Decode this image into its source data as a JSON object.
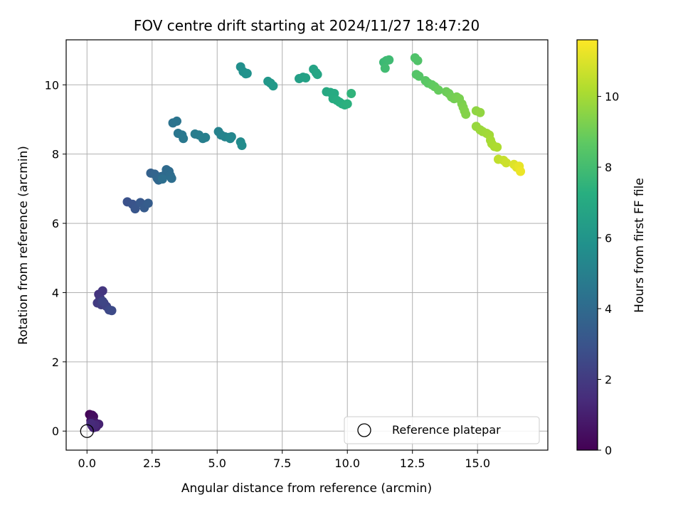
{
  "chart_data": {
    "type": "scatter",
    "title": "FOV centre drift starting at 2024/11/27 18:47:20",
    "xlabel": "Angular distance from reference (arcmin)",
    "ylabel": "Rotation from reference (arcmin)",
    "xlim": [
      -0.8,
      17.7
    ],
    "ylim": [
      -0.55,
      11.3
    ],
    "xticks": [
      0.0,
      2.5,
      5.0,
      7.5,
      10.0,
      12.5,
      15.0
    ],
    "xtick_labels": [
      "0.0",
      "2.5",
      "5.0",
      "7.5",
      "10.0",
      "12.5",
      "15.0"
    ],
    "yticks": [
      0,
      2,
      4,
      6,
      8,
      10
    ],
    "ytick_labels": [
      "0",
      "2",
      "4",
      "6",
      "8",
      "10"
    ],
    "grid": true,
    "legend": {
      "placement": "lower-right",
      "entries": [
        "Reference platepar"
      ]
    },
    "colorbar": {
      "label": "Hours from first FF file",
      "colormap": "viridis",
      "range": [
        0,
        11.6
      ],
      "ticks": [
        0,
        2,
        4,
        6,
        8,
        10
      ],
      "tick_labels": [
        "0",
        "2",
        "4",
        "6",
        "8",
        "10"
      ]
    },
    "reference_point": {
      "name": "Reference platepar",
      "x": 0.0,
      "y": 0.0
    },
    "points": [
      {
        "x": 0.1,
        "y": 0.48,
        "c": 0.1
      },
      {
        "x": 0.2,
        "y": 0.46,
        "c": 0.3
      },
      {
        "x": 0.25,
        "y": 0.42,
        "c": 0.4
      },
      {
        "x": 0.15,
        "y": 0.3,
        "c": 0.5
      },
      {
        "x": 0.3,
        "y": 0.25,
        "c": 0.7
      },
      {
        "x": 0.4,
        "y": 0.2,
        "c": 0.8
      },
      {
        "x": 0.2,
        "y": 0.15,
        "c": 0.9
      },
      {
        "x": 0.35,
        "y": 0.12,
        "c": 1.0
      },
      {
        "x": 0.45,
        "y": 0.2,
        "c": 1.1
      },
      {
        "x": 0.25,
        "y": 0.1,
        "c": 1.2
      },
      {
        "x": 0.3,
        "y": 0.18,
        "c": 1.3
      },
      {
        "x": 0.15,
        "y": 0.22,
        "c": 1.4
      },
      {
        "x": 0.45,
        "y": 3.95,
        "c": 1.7
      },
      {
        "x": 0.6,
        "y": 4.05,
        "c": 1.8
      },
      {
        "x": 0.5,
        "y": 3.85,
        "c": 1.9
      },
      {
        "x": 0.4,
        "y": 3.7,
        "c": 2.0
      },
      {
        "x": 0.55,
        "y": 3.65,
        "c": 2.1
      },
      {
        "x": 0.65,
        "y": 3.7,
        "c": 2.2
      },
      {
        "x": 0.75,
        "y": 3.6,
        "c": 2.3
      },
      {
        "x": 0.6,
        "y": 3.75,
        "c": 2.4
      },
      {
        "x": 0.85,
        "y": 3.5,
        "c": 2.5
      },
      {
        "x": 0.95,
        "y": 3.48,
        "c": 2.6
      },
      {
        "x": 1.55,
        "y": 6.62,
        "c": 2.9
      },
      {
        "x": 1.75,
        "y": 6.55,
        "c": 3.0
      },
      {
        "x": 1.85,
        "y": 6.42,
        "c": 3.1
      },
      {
        "x": 2.05,
        "y": 6.6,
        "c": 3.2
      },
      {
        "x": 2.2,
        "y": 6.45,
        "c": 3.3
      },
      {
        "x": 2.35,
        "y": 6.58,
        "c": 3.4
      },
      {
        "x": 2.45,
        "y": 7.45,
        "c": 3.6
      },
      {
        "x": 2.6,
        "y": 7.42,
        "c": 3.7
      },
      {
        "x": 2.7,
        "y": 7.3,
        "c": 3.8
      },
      {
        "x": 2.75,
        "y": 7.25,
        "c": 3.85
      },
      {
        "x": 2.85,
        "y": 7.35,
        "c": 3.9
      },
      {
        "x": 3.0,
        "y": 7.4,
        "c": 3.95
      },
      {
        "x": 3.05,
        "y": 7.55,
        "c": 4.0
      },
      {
        "x": 3.15,
        "y": 7.5,
        "c": 4.05
      },
      {
        "x": 3.2,
        "y": 7.38,
        "c": 4.1
      },
      {
        "x": 3.25,
        "y": 7.3,
        "c": 4.15
      },
      {
        "x": 2.9,
        "y": 7.28,
        "c": 4.2
      },
      {
        "x": 3.3,
        "y": 8.9,
        "c": 4.4
      },
      {
        "x": 3.45,
        "y": 8.95,
        "c": 4.45
      },
      {
        "x": 3.5,
        "y": 8.6,
        "c": 4.55
      },
      {
        "x": 3.65,
        "y": 8.55,
        "c": 4.6
      },
      {
        "x": 3.7,
        "y": 8.45,
        "c": 4.65
      },
      {
        "x": 4.15,
        "y": 8.58,
        "c": 4.8
      },
      {
        "x": 4.3,
        "y": 8.55,
        "c": 4.85
      },
      {
        "x": 4.45,
        "y": 8.45,
        "c": 4.9
      },
      {
        "x": 4.55,
        "y": 8.48,
        "c": 4.95
      },
      {
        "x": 5.05,
        "y": 8.65,
        "c": 5.1
      },
      {
        "x": 5.15,
        "y": 8.55,
        "c": 5.15
      },
      {
        "x": 5.3,
        "y": 8.5,
        "c": 5.2
      },
      {
        "x": 5.45,
        "y": 8.48,
        "c": 5.25
      },
      {
        "x": 5.55,
        "y": 8.5,
        "c": 5.3
      },
      {
        "x": 5.5,
        "y": 8.45,
        "c": 5.35
      },
      {
        "x": 5.9,
        "y": 8.35,
        "c": 5.5
      },
      {
        "x": 5.95,
        "y": 8.25,
        "c": 5.55
      },
      {
        "x": 5.9,
        "y": 10.52,
        "c": 5.7
      },
      {
        "x": 6.0,
        "y": 10.38,
        "c": 5.75
      },
      {
        "x": 6.1,
        "y": 10.32,
        "c": 5.8
      },
      {
        "x": 6.15,
        "y": 10.33,
        "c": 5.85
      },
      {
        "x": 6.95,
        "y": 10.1,
        "c": 6.1
      },
      {
        "x": 7.05,
        "y": 10.05,
        "c": 6.15
      },
      {
        "x": 7.15,
        "y": 9.97,
        "c": 6.2
      },
      {
        "x": 8.15,
        "y": 10.18,
        "c": 6.5
      },
      {
        "x": 8.3,
        "y": 10.22,
        "c": 6.55
      },
      {
        "x": 8.4,
        "y": 10.2,
        "c": 6.6
      },
      {
        "x": 8.7,
        "y": 10.45,
        "c": 6.7
      },
      {
        "x": 8.8,
        "y": 10.35,
        "c": 6.75
      },
      {
        "x": 8.85,
        "y": 10.3,
        "c": 6.8
      },
      {
        "x": 9.2,
        "y": 9.8,
        "c": 6.95
      },
      {
        "x": 9.35,
        "y": 9.78,
        "c": 7.0
      },
      {
        "x": 9.5,
        "y": 9.75,
        "c": 7.05
      },
      {
        "x": 9.45,
        "y": 9.6,
        "c": 7.1
      },
      {
        "x": 9.6,
        "y": 9.55,
        "c": 7.15
      },
      {
        "x": 9.7,
        "y": 9.5,
        "c": 7.2
      },
      {
        "x": 9.8,
        "y": 9.45,
        "c": 7.25
      },
      {
        "x": 9.9,
        "y": 9.42,
        "c": 7.3
      },
      {
        "x": 10.0,
        "y": 9.45,
        "c": 7.35
      },
      {
        "x": 10.15,
        "y": 9.75,
        "c": 7.5
      },
      {
        "x": 11.4,
        "y": 10.65,
        "c": 7.8
      },
      {
        "x": 11.5,
        "y": 10.7,
        "c": 7.85
      },
      {
        "x": 11.6,
        "y": 10.72,
        "c": 7.9
      },
      {
        "x": 11.45,
        "y": 10.48,
        "c": 7.95
      },
      {
        "x": 12.6,
        "y": 10.78,
        "c": 8.3
      },
      {
        "x": 12.7,
        "y": 10.7,
        "c": 8.35
      },
      {
        "x": 12.65,
        "y": 10.3,
        "c": 8.4
      },
      {
        "x": 12.75,
        "y": 10.25,
        "c": 8.45
      },
      {
        "x": 13.0,
        "y": 10.12,
        "c": 8.55
      },
      {
        "x": 13.1,
        "y": 10.05,
        "c": 8.6
      },
      {
        "x": 13.25,
        "y": 10.0,
        "c": 8.7
      },
      {
        "x": 13.35,
        "y": 9.95,
        "c": 8.75
      },
      {
        "x": 13.5,
        "y": 9.85,
        "c": 8.85
      },
      {
        "x": 13.8,
        "y": 9.8,
        "c": 8.95
      },
      {
        "x": 13.9,
        "y": 9.75,
        "c": 9.0
      },
      {
        "x": 14.0,
        "y": 9.65,
        "c": 9.05
      },
      {
        "x": 14.1,
        "y": 9.6,
        "c": 9.1
      },
      {
        "x": 14.2,
        "y": 9.65,
        "c": 9.15
      },
      {
        "x": 14.3,
        "y": 9.6,
        "c": 9.2
      },
      {
        "x": 14.4,
        "y": 9.45,
        "c": 9.25
      },
      {
        "x": 14.45,
        "y": 9.35,
        "c": 9.3
      },
      {
        "x": 14.5,
        "y": 9.25,
        "c": 9.35
      },
      {
        "x": 14.55,
        "y": 9.15,
        "c": 9.4
      },
      {
        "x": 14.95,
        "y": 9.25,
        "c": 9.6
      },
      {
        "x": 15.1,
        "y": 9.2,
        "c": 9.65
      },
      {
        "x": 14.95,
        "y": 8.8,
        "c": 9.75
      },
      {
        "x": 15.1,
        "y": 8.7,
        "c": 9.8
      },
      {
        "x": 15.2,
        "y": 8.65,
        "c": 9.85
      },
      {
        "x": 15.35,
        "y": 8.6,
        "c": 9.9
      },
      {
        "x": 15.45,
        "y": 8.55,
        "c": 9.95
      },
      {
        "x": 15.5,
        "y": 8.4,
        "c": 10.0
      },
      {
        "x": 15.55,
        "y": 8.3,
        "c": 10.05
      },
      {
        "x": 15.65,
        "y": 8.22,
        "c": 10.1
      },
      {
        "x": 15.75,
        "y": 8.2,
        "c": 10.15
      },
      {
        "x": 15.8,
        "y": 7.85,
        "c": 10.5
      },
      {
        "x": 16.0,
        "y": 7.82,
        "c": 10.6
      },
      {
        "x": 16.1,
        "y": 7.75,
        "c": 10.7
      },
      {
        "x": 16.4,
        "y": 7.7,
        "c": 11.0
      },
      {
        "x": 16.5,
        "y": 7.62,
        "c": 11.1
      },
      {
        "x": 16.6,
        "y": 7.65,
        "c": 11.2
      },
      {
        "x": 16.65,
        "y": 7.5,
        "c": 11.3
      }
    ]
  }
}
